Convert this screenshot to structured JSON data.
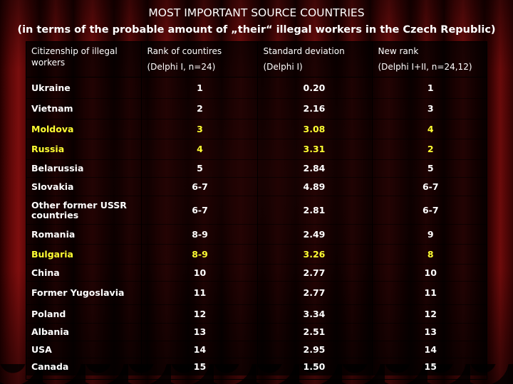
{
  "title": "MOST IMPORTANT SOURCE COUNTRIES",
  "subtitle": "(in terms of the probable amount of „their“ illegal workers in the Czech Republic)",
  "columns": [
    {
      "line1": "Citizenship of illegal",
      "line2": "workers"
    },
    {
      "line1": "Rank of countires",
      "line2": "(Delphi I, n=24)"
    },
    {
      "line1": "Standard deviation",
      "line2": "(Delphi I)"
    },
    {
      "line1": "New rank",
      "line2": "(Delphi I+II, n=24,12)"
    }
  ],
  "rows": [
    {
      "country": "Ukraine",
      "rank": "1",
      "sd": "0.20",
      "new_rank": "1",
      "highlight": false
    },
    {
      "country": "Vietnam",
      "rank": "2",
      "sd": "2.16",
      "new_rank": "3",
      "highlight": false
    },
    {
      "country": "Moldova",
      "rank": "3",
      "sd": "3.08",
      "new_rank": "4",
      "highlight": true
    },
    {
      "country": "Russia",
      "rank": "4",
      "sd": "3.31",
      "new_rank": "2",
      "highlight": true
    },
    {
      "country": "Belarussia",
      "rank": "5",
      "sd": "2.84",
      "new_rank": "5",
      "highlight": false
    },
    {
      "country": "Slovakia",
      "rank": "6-7",
      "sd": "4.89",
      "new_rank": "6-7",
      "highlight": false
    },
    {
      "country": "Other former USSR countries",
      "rank": "6-7",
      "sd": "2.81",
      "new_rank": "6-7",
      "highlight": false
    },
    {
      "country": "Romania",
      "rank": "8-9",
      "sd": "2.49",
      "new_rank": "9",
      "highlight": false
    },
    {
      "country": "Bulgaria",
      "rank": "8-9",
      "sd": "3.26",
      "new_rank": "8",
      "highlight": true
    },
    {
      "country": "China",
      "rank": "10",
      "sd": "2.77",
      "new_rank": "10",
      "highlight": false
    },
    {
      "country": "Former Yugoslavia",
      "rank": "11",
      "sd": "2.77",
      "new_rank": "11",
      "highlight": false
    },
    {
      "country": "Poland",
      "rank": "12",
      "sd": "3.34",
      "new_rank": "12",
      "highlight": false
    },
    {
      "country": "Albania",
      "rank": "13",
      "sd": "2.51",
      "new_rank": "13",
      "highlight": false
    },
    {
      "country": "USA",
      "rank": "14",
      "sd": "2.95",
      "new_rank": "14",
      "highlight": false
    },
    {
      "country": "Canada",
      "rank": "15",
      "sd": "1.50",
      "new_rank": "15",
      "highlight": false
    }
  ],
  "colors": {
    "text": "#ffffff",
    "highlight_text": "#ffff33",
    "table_bg": "#000000",
    "curtain": "#8e1010"
  }
}
